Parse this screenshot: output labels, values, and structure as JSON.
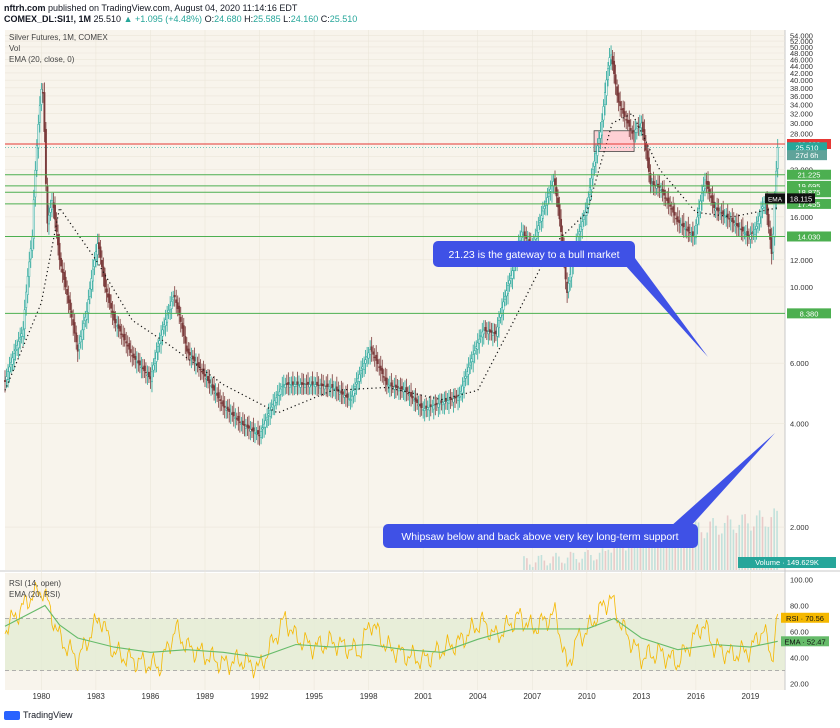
{
  "header": {
    "author": "nftrh.com",
    "published_text": "published on TradingView.com, August 04, 2020 11:14:16 EDT",
    "symbol": "COMEX_DL:SI1!, 1M",
    "last": "25.510",
    "change": "▲ +1.095 (+4.48%)",
    "open_label": "O:",
    "open": "24.680",
    "high_label": "H:",
    "high": "25.585",
    "low_label": "L:",
    "low": "24.160",
    "close_label": "C:",
    "close": "25.510"
  },
  "legend": {
    "title": "Silver Futures, 1M, COMEX",
    "vol": "Vol",
    "ema": "EMA (20, close, 0)",
    "rsi": "RSI (14, open)",
    "rsi_ema": "EMA (20, RSI)"
  },
  "annotations": {
    "bull": "21.23 is the gateway to a bull market",
    "whipsaw": "Whipsaw below and back above very key long-term support"
  },
  "footer": {
    "brand": "TradingView"
  },
  "colors": {
    "background": "#f8f4ec",
    "up_candle": "#26a69a",
    "down_candle": "#7a3a3a",
    "support_line": "#4caf50",
    "resistance_line": "#e53935",
    "annotation_blue": "#3f51e6",
    "rsi_line": "#f5b800",
    "rsi_ema_line": "#66bb6a"
  },
  "chart_data": [
    {
      "type": "candlestick",
      "title": "Silver Futures, 1M, COMEX",
      "y_scale": "log",
      "ylim": [
        1.5,
        56
      ],
      "y_ticks": [
        "54.000",
        "52.000",
        "50.000",
        "48.000",
        "46.000",
        "44.000",
        "42.000",
        "40.000",
        "38.000",
        "36.000",
        "34.000",
        "32.000",
        "30.000",
        "28.000",
        "24.000",
        "22.000",
        "16.000",
        "12.000",
        "10.000",
        "6.000",
        "4.000",
        "2.000"
      ],
      "x_ticks": [
        "1980",
        "1983",
        "1986",
        "1989",
        "1992",
        "1995",
        "1998",
        "2001",
        "2004",
        "2007",
        "2010",
        "2013",
        "2016",
        "2019"
      ],
      "price_series": {
        "name": "Silver Futures",
        "x": [
          1978,
          1979,
          1979.5,
          1980.05,
          1980.3,
          1980.6,
          1981,
          1981.5,
          1982,
          1982.5,
          1983.1,
          1983.5,
          1984,
          1985,
          1986,
          1987.3,
          1988,
          1989,
          1990,
          1991,
          1992,
          1993.3,
          1994,
          1995,
          1996,
          1997,
          1998.1,
          1999,
          2000,
          2001,
          2002,
          2003,
          2004.3,
          2005,
          2006,
          2006.4,
          2007,
          2008.2,
          2008.9,
          2009.5,
          2010,
          2010.8,
          2011.3,
          2011.7,
          2012,
          2012.5,
          2013,
          2013.5,
          2014,
          2015,
          2015.9,
          2016.5,
          2017,
          2018,
          2018.9,
          2019.3,
          2019.8,
          2020.2,
          2020.5
        ],
        "y": [
          5.3,
          7.5,
          14,
          40,
          15,
          18,
          12,
          9,
          6.5,
          8.5,
          13.5,
          10,
          8,
          6.3,
          5.4,
          9.5,
          6.5,
          5.5,
          4.5,
          4,
          3.7,
          5.2,
          5.2,
          5.2,
          5.1,
          4.7,
          6.6,
          5.2,
          5,
          4.4,
          4.6,
          4.8,
          7.5,
          7.3,
          11.5,
          14.5,
          13,
          20.5,
          9.5,
          14,
          17,
          29,
          48.5,
          35,
          32,
          28,
          30,
          20,
          19.5,
          15.5,
          14,
          20.5,
          17,
          15.5,
          14,
          14.8,
          18,
          12,
          25.5
        ]
      },
      "ema_series": {
        "x": [
          1978,
          1980,
          1981,
          1983,
          1985,
          1987,
          1990,
          1993,
          1996,
          1999,
          2002,
          2004,
          2006,
          2008,
          2010,
          2011.4,
          2012.5,
          2014,
          2016,
          2018,
          2020.5
        ],
        "y": [
          5,
          9,
          17,
          12,
          8,
          6.8,
          5.2,
          4.3,
          5,
          5.1,
          4.7,
          5,
          8,
          13,
          16.5,
          30,
          32,
          22,
          16.5,
          16,
          17
        ]
      },
      "volume_note": "Volume",
      "horizontal_levels": [
        {
          "value": 26.08,
          "label": "26.080",
          "kind": "resistance"
        },
        {
          "value": 21.225,
          "label": "21.225",
          "kind": "support"
        },
        {
          "value": 19.695,
          "label": "19.695",
          "kind": "support"
        },
        {
          "value": 18.875,
          "label": "18.875",
          "kind": "support"
        },
        {
          "value": 17.455,
          "label": "17.455",
          "kind": "support"
        },
        {
          "value": 14.03,
          "label": "14.030",
          "kind": "support"
        },
        {
          "value": 8.38,
          "label": "8.380",
          "kind": "support"
        }
      ],
      "price_tags": [
        {
          "label": "25.510"
        },
        {
          "label": "27d 6h"
        },
        {
          "label": "18.115"
        },
        {
          "label": "EMA"
        }
      ],
      "volume_tag": "Volume · 149.629K"
    },
    {
      "type": "line",
      "title": "RSI (14, open)",
      "ylim": [
        15,
        105
      ],
      "y_ticks": [
        "100.00",
        "80.00",
        "60.00",
        "40.00",
        "20.00"
      ],
      "series": [
        {
          "name": "RSI",
          "x": [
            1978,
            1979.5,
            1980.1,
            1981,
            1982,
            1983.2,
            1984,
            1985,
            1986.5,
            1987.4,
            1988,
            1989,
            1990,
            1991,
            1992,
            1993.4,
            1994,
            1995,
            1996,
            1997.5,
            1998.1,
            1999,
            2000,
            2001,
            2002,
            2003,
            2004.2,
            2005,
            2006.3,
            2007,
            2008.3,
            2008.9,
            2009.5,
            2010,
            2010.8,
            2011.3,
            2012,
            2013,
            2014,
            2015,
            2016.4,
            2017,
            2018,
            2019,
            2019.7,
            2020.2,
            2020.5
          ],
          "y": [
            62,
            88,
            92,
            55,
            38,
            72,
            44,
            38,
            33,
            62,
            48,
            42,
            35,
            38,
            32,
            70,
            55,
            48,
            52,
            44,
            68,
            48,
            42,
            38,
            46,
            52,
            68,
            56,
            72,
            62,
            74,
            32,
            55,
            60,
            78,
            86,
            62,
            40,
            44,
            36,
            66,
            48,
            42,
            46,
            62,
            40,
            70.56
          ]
        },
        {
          "name": "EMA",
          "x": [
            1978,
            1980.2,
            1981,
            1982,
            1984,
            1986,
            1988,
            1990,
            1992,
            1994,
            1996,
            1998,
            2000,
            2002,
            2004,
            2006,
            2008,
            2010,
            2011.5,
            2013,
            2015,
            2017,
            2019,
            2020.5
          ],
          "y": [
            64,
            80,
            65,
            55,
            48,
            44,
            46,
            44,
            40,
            50,
            48,
            50,
            46,
            44,
            54,
            62,
            62,
            62,
            70,
            55,
            46,
            50,
            48,
            52.47
          ]
        }
      ],
      "levels": [
        70,
        30
      ],
      "tags": [
        {
          "label": "RSI · 70.56"
        },
        {
          "label": "EMA · 52.47"
        }
      ]
    }
  ]
}
